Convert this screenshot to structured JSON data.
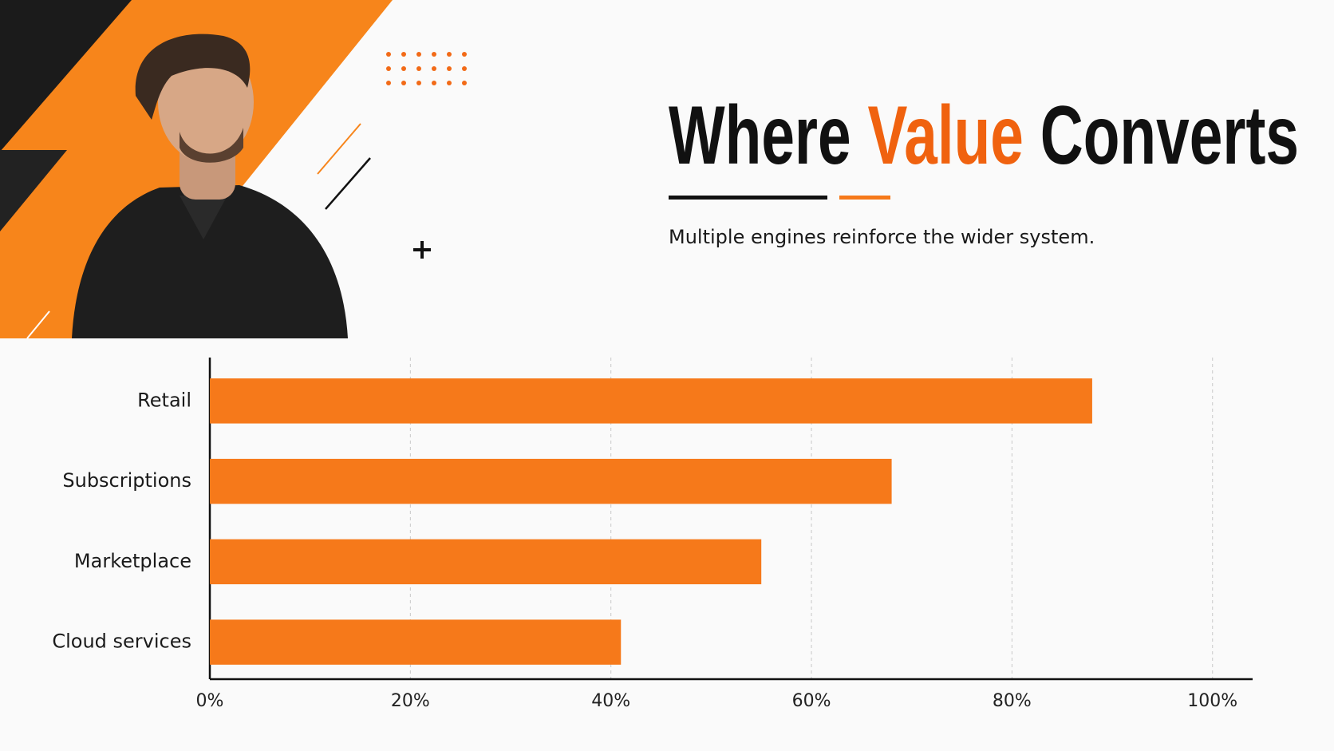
{
  "chart_data": {
    "type": "bar",
    "orientation": "horizontal",
    "title_parts": [
      "Where",
      "Value",
      "Converts"
    ],
    "subtitle": "Multiple engines reinforce the wider system.",
    "categories": [
      "Retail",
      "Subscriptions",
      "Marketplace",
      "Cloud services"
    ],
    "values": [
      88,
      68,
      55,
      41
    ],
    "color": "#f6791a",
    "xlim": [
      0,
      104
    ],
    "xticks": [
      {
        "value": 0,
        "label": "0%"
      },
      {
        "value": 20,
        "label": "20%"
      },
      {
        "value": 40,
        "label": "40%"
      },
      {
        "value": 60,
        "label": "60%"
      },
      {
        "value": 80,
        "label": "80%"
      },
      {
        "value": 100,
        "label": "100%"
      }
    ],
    "grid": true
  }
}
